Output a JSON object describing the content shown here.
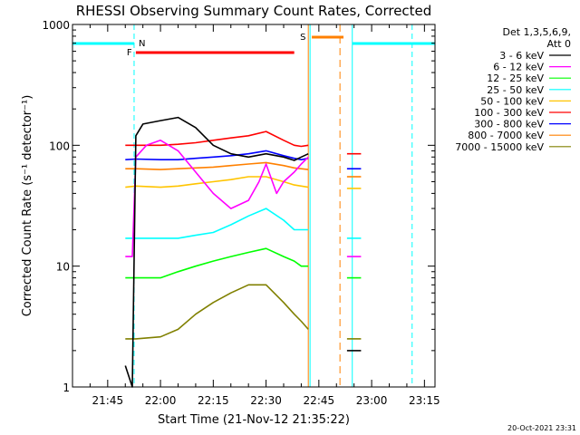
{
  "chart_data": {
    "type": "line",
    "title": "RHESSI Observing Summary Count Rates, Corrected",
    "xlabel": "Start Time (21-Nov-12 21:35:22)",
    "ylabel": "Corrected Count Rate (s⁻¹ detector⁻¹)",
    "y_scale": "log",
    "ylim": [
      1,
      1000
    ],
    "yticks": [
      "1",
      "10",
      "100",
      "1000"
    ],
    "xlim": [
      "21:35",
      "23:18"
    ],
    "xticks": [
      "21:45",
      "22:00",
      "22:15",
      "22:30",
      "22:45",
      "23:00",
      "23:15"
    ],
    "legend_header": "Det 1,3,5,6,9,",
    "legend_subheader": "Att 0",
    "legend_position": "right",
    "flag_labels": {
      "night": "N",
      "flare": "F",
      "saa": "S"
    },
    "flags": {
      "night_boundaries": [
        "21:52:30",
        "22:42:30",
        "22:54:30",
        "23:11:30"
      ],
      "flare": [
        "21:53",
        "22:38"
      ],
      "saa": [
        "22:43",
        "22:52"
      ],
      "saa_boundaries": [
        "22:42",
        "22:51"
      ]
    },
    "series": [
      {
        "name": "3 - 6 keV",
        "color": "#000000",
        "segments": [
          {
            "x": [
              "21:50",
              "21:52",
              "21:53",
              "21:55",
              "22:00",
              "22:05",
              "22:10",
              "22:15",
              "22:20",
              "22:25",
              "22:30",
              "22:35",
              "22:38",
              "22:40",
              "22:42"
            ],
            "y": [
              1.5,
              1,
              120,
              150,
              160,
              170,
              140,
              100,
              85,
              80,
              85,
              80,
              75,
              80,
              85
            ]
          },
          {
            "x": [
              "22:53",
              "22:55",
              "22:57"
            ],
            "y": [
              2,
              2,
              2
            ]
          }
        ]
      },
      {
        "name": "6 - 12 keV",
        "color": "#ff00ff",
        "segments": [
          {
            "x": [
              "21:50",
              "21:52",
              "21:53",
              "21:56",
              "22:00",
              "22:05",
              "22:10",
              "22:15",
              "22:20",
              "22:25",
              "22:28",
              "22:30",
              "22:33",
              "22:35",
              "22:38",
              "22:40",
              "22:42"
            ],
            "y": [
              12,
              12,
              80,
              100,
              110,
              90,
              60,
              40,
              30,
              35,
              50,
              70,
              40,
              50,
              60,
              70,
              80
            ]
          },
          {
            "x": [
              "22:53",
              "22:55",
              "22:57"
            ],
            "y": [
              12,
              12,
              12
            ]
          }
        ]
      },
      {
        "name": "12 - 25 keV",
        "color": "#00ff00",
        "segments": [
          {
            "x": [
              "21:50",
              "21:53",
              "22:00",
              "22:05",
              "22:10",
              "22:15",
              "22:20",
              "22:25",
              "22:30",
              "22:35",
              "22:38",
              "22:40",
              "22:42"
            ],
            "y": [
              8,
              8,
              8,
              9,
              10,
              11,
              12,
              13,
              14,
              12,
              11,
              10,
              10
            ]
          },
          {
            "x": [
              "22:53",
              "22:55",
              "22:57"
            ],
            "y": [
              8,
              8,
              8
            ]
          }
        ]
      },
      {
        "name": "25 - 50 keV",
        "color": "#00ffff",
        "segments": [
          {
            "x": [
              "21:50",
              "21:53",
              "22:00",
              "22:05",
              "22:10",
              "22:15",
              "22:20",
              "22:25",
              "22:30",
              "22:35",
              "22:38",
              "22:40",
              "22:42"
            ],
            "y": [
              17,
              17,
              17,
              17,
              18,
              19,
              22,
              26,
              30,
              24,
              20,
              20,
              20
            ]
          },
          {
            "x": [
              "22:53",
              "22:55",
              "22:57"
            ],
            "y": [
              17,
              17,
              17
            ]
          }
        ]
      },
      {
        "name": "50 - 100 keV",
        "color": "#ffc400",
        "segments": [
          {
            "x": [
              "21:50",
              "21:53",
              "22:00",
              "22:05",
              "22:10",
              "22:15",
              "22:20",
              "22:25",
              "22:30",
              "22:35",
              "22:38",
              "22:40",
              "22:42"
            ],
            "y": [
              45,
              46,
              45,
              46,
              48,
              50,
              52,
              55,
              55,
              50,
              47,
              46,
              45
            ]
          },
          {
            "x": [
              "22:53",
              "22:55",
              "22:57"
            ],
            "y": [
              44,
              44,
              44
            ]
          }
        ]
      },
      {
        "name": "100 - 300 keV",
        "color": "#ff0000",
        "segments": [
          {
            "x": [
              "21:50",
              "21:53",
              "22:00",
              "22:05",
              "22:10",
              "22:15",
              "22:20",
              "22:25",
              "22:30",
              "22:35",
              "22:38",
              "22:40",
              "22:42"
            ],
            "y": [
              100,
              100,
              100,
              102,
              105,
              110,
              115,
              120,
              130,
              110,
              100,
              98,
              100
            ]
          },
          {
            "x": [
              "22:53",
              "22:55",
              "22:57"
            ],
            "y": [
              85,
              85,
              85
            ]
          }
        ]
      },
      {
        "name": "300 - 800 keV",
        "color": "#0000ff",
        "segments": [
          {
            "x": [
              "21:50",
              "21:53",
              "22:00",
              "22:05",
              "22:10",
              "22:15",
              "22:20",
              "22:25",
              "22:30",
              "22:35",
              "22:38",
              "22:40",
              "22:42"
            ],
            "y": [
              76,
              77,
              76,
              76,
              78,
              80,
              82,
              85,
              90,
              82,
              78,
              76,
              78
            ]
          },
          {
            "x": [
              "22:53",
              "22:55",
              "22:57"
            ],
            "y": [
              64,
              64,
              64
            ]
          }
        ]
      },
      {
        "name": "800 - 7000 keV",
        "color": "#ff8000",
        "segments": [
          {
            "x": [
              "21:50",
              "21:53",
              "22:00",
              "22:05",
              "22:10",
              "22:15",
              "22:20",
              "22:25",
              "22:30",
              "22:35",
              "22:38",
              "22:40",
              "22:42"
            ],
            "y": [
              64,
              64,
              63,
              64,
              65,
              66,
              68,
              70,
              72,
              68,
              65,
              64,
              63
            ]
          },
          {
            "x": [
              "22:53",
              "22:55",
              "22:57"
            ],
            "y": [
              55,
              55,
              55
            ]
          }
        ]
      },
      {
        "name": "7000 - 15000 keV",
        "color": "#808000",
        "segments": [
          {
            "x": [
              "21:50",
              "21:53",
              "22:00",
              "22:05",
              "22:10",
              "22:15",
              "22:20",
              "22:25",
              "22:30",
              "22:35",
              "22:38",
              "22:40",
              "22:42"
            ],
            "y": [
              2.5,
              2.5,
              2.6,
              3,
              4,
              5,
              6,
              7,
              7,
              5,
              4,
              3.5,
              3
            ]
          },
          {
            "x": [
              "22:53",
              "22:55",
              "22:57"
            ],
            "y": [
              2.5,
              2.5,
              2.5
            ]
          }
        ]
      }
    ],
    "footer_timestamp": "20-Oct-2021 23:31"
  }
}
